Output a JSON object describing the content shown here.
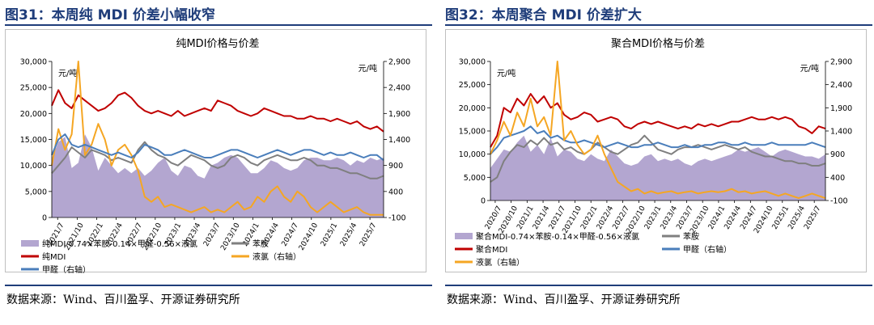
{
  "chart_data": [
    {
      "type": "area",
      "figure_label": "图31：本周纯 MDI 价差小幅收窄",
      "title": "纯MDI价格与价差",
      "source": "数据来源：Wind、百川盈孚、开源证券研究所",
      "left_unit": "元/吨",
      "right_unit": "元/吨",
      "left_axis": {
        "ticks": [
          0,
          5000,
          10000,
          15000,
          20000,
          25000,
          30000
        ],
        "tick_labels": [
          "0",
          "5,000",
          "10,000",
          "15,000",
          "20,000",
          "25,000",
          "30,000"
        ]
      },
      "right_axis": {
        "ticks": [
          -100,
          400,
          900,
          1400,
          1900,
          2400,
          2900
        ],
        "tick_labels": [
          "-100",
          "400",
          "900",
          "1,400",
          "1,900",
          "2,400",
          "2,900"
        ]
      },
      "x_tick_labels": [
        "2021/7",
        "2021/10",
        "2022/1",
        "2022/4",
        "2022/7",
        "2022/10",
        "2023/1",
        "2023/4",
        "2023/7",
        "2023/10",
        "2024/1",
        "2024/4",
        "2024/7",
        "2024/10",
        "2025/1",
        "2025/4",
        "2025/7"
      ],
      "series": [
        {
          "name": "纯MDI-0.74×苯胺-0.14×甲醛-0.56×液氯",
          "axis": "left",
          "style": "area",
          "color": "#b3a6d0",
          "values": [
            11500,
            14500,
            15500,
            9500,
            10500,
            16000,
            13500,
            9000,
            11500,
            10000,
            8500,
            9500,
            8500,
            9500,
            8000,
            9000,
            10500,
            11500,
            9000,
            8000,
            10000,
            9500,
            8000,
            7500,
            10000,
            10500,
            11500,
            12000,
            11500,
            10000,
            8500,
            8500,
            9500,
            11000,
            10500,
            9500,
            9000,
            9500,
            11000,
            11500,
            11500,
            11000,
            11000,
            11500,
            11000,
            10000,
            11000,
            10500,
            11500,
            11000,
            11500
          ]
        },
        {
          "name": "苯胺",
          "axis": "left",
          "style": "line",
          "color": "#7f7f7f",
          "values": [
            8500,
            10000,
            11500,
            13500,
            12500,
            11500,
            13000,
            12500,
            12000,
            11000,
            11500,
            11000,
            10500,
            13000,
            14500,
            13000,
            12000,
            11500,
            10500,
            10000,
            11000,
            12000,
            11500,
            11000,
            10000,
            9500,
            10000,
            11500,
            12000,
            11500,
            10500,
            10000,
            11000,
            11500,
            12000,
            11500,
            11000,
            11000,
            11500,
            11000,
            10000,
            10000,
            9500,
            9500,
            9000,
            8500,
            8500,
            8000,
            7500,
            7500,
            8000
          ]
        },
        {
          "name": "纯MDI",
          "axis": "left",
          "style": "line",
          "color": "#c00000",
          "values": [
            21500,
            24500,
            22000,
            21000,
            23500,
            22500,
            21500,
            20500,
            21000,
            22000,
            23500,
            24000,
            23000,
            21500,
            20500,
            20000,
            20500,
            20000,
            19500,
            20500,
            19500,
            20000,
            20500,
            21000,
            20500,
            22500,
            22000,
            21500,
            20500,
            20000,
            19500,
            20000,
            21000,
            20500,
            20000,
            19500,
            19500,
            19000,
            19000,
            19500,
            19000,
            19000,
            18500,
            19000,
            18500,
            18000,
            18500,
            17500,
            17000,
            17500,
            16500
          ]
        },
        {
          "name": "液氯（右轴）",
          "axis": "right",
          "style": "line",
          "color": "#f5a623",
          "values": [
            900,
            1600,
            1200,
            1500,
            2900,
            1100,
            1300,
            1700,
            1400,
            900,
            1200,
            1300,
            1100,
            800,
            300,
            200,
            300,
            100,
            150,
            100,
            50,
            0,
            50,
            100,
            0,
            50,
            0,
            100,
            200,
            50,
            100,
            300,
            200,
            400,
            500,
            300,
            200,
            400,
            300,
            100,
            0,
            100,
            200,
            100,
            0,
            50,
            100,
            0,
            -50,
            -50,
            -50
          ]
        },
        {
          "name": "甲醛（右轴）",
          "axis": "right",
          "style": "line",
          "color": "#4a7ebb",
          "values": [
            1100,
            1400,
            1500,
            1300,
            1250,
            1300,
            1250,
            1200,
            1150,
            1100,
            1150,
            1100,
            1050,
            1150,
            1300,
            1250,
            1200,
            1100,
            1100,
            1150,
            1200,
            1150,
            1100,
            1050,
            1050,
            1100,
            1150,
            1200,
            1200,
            1150,
            1100,
            1050,
            1100,
            1150,
            1200,
            1150,
            1100,
            1150,
            1200,
            1200,
            1150,
            1100,
            1150,
            1100,
            1100,
            1150,
            1100,
            1050,
            1100,
            1100,
            1000
          ]
        }
      ]
    },
    {
      "type": "area",
      "figure_label": "图32：本周聚合 MDI 价差扩大",
      "title": "聚合MDI价格与价差",
      "source": "数据来源：Wind、百川盈孚、开源证券研究所",
      "left_unit": "元/吨",
      "right_unit": "元/吨",
      "left_axis": {
        "ticks": [
          0,
          5000,
          10000,
          15000,
          20000,
          25000,
          30000
        ],
        "tick_labels": [
          "0",
          "5,000",
          "10,000",
          "15,000",
          "20,000",
          "25,000",
          "30,000"
        ]
      },
      "right_axis": {
        "ticks": [
          -100,
          400,
          900,
          1400,
          1900,
          2400,
          2900
        ],
        "tick_labels": [
          "-100",
          "400",
          "900",
          "1,400",
          "1,900",
          "2,400",
          "2,900"
        ]
      },
      "x_tick_labels": [
        "2020/7",
        "2020/10",
        "2021/1",
        "2021/4",
        "2021/7",
        "2021/10",
        "2022/1",
        "2022/4",
        "2022/7",
        "2022/10",
        "2023/1",
        "2023/4",
        "2023/7",
        "2023/10",
        "2024/1",
        "2024/4",
        "2024/7",
        "2024/10",
        "2025/1",
        "2025/4",
        "2025/7"
      ],
      "series": [
        {
          "name": "聚合MDI-0.74×苯胺-0.14×甲醛-0.56×液氯",
          "axis": "left",
          "style": "area",
          "color": "#b3a6d0",
          "values": [
            7000,
            9000,
            11000,
            10500,
            12500,
            14000,
            10500,
            12000,
            10000,
            13500,
            9500,
            11000,
            10500,
            9000,
            8500,
            10000,
            9000,
            8500,
            11000,
            9500,
            8000,
            7500,
            8000,
            9500,
            10000,
            8500,
            9000,
            8500,
            9000,
            8000,
            7500,
            8500,
            9000,
            8500,
            9000,
            9500,
            10000,
            11000,
            10500,
            11000,
            11500,
            10500,
            9500,
            10500,
            11000,
            10500,
            10000,
            9500,
            9500,
            9000,
            10000
          ]
        },
        {
          "name": "苯胺",
          "axis": "left",
          "style": "line",
          "color": "#7f7f7f",
          "values": [
            4000,
            5000,
            8500,
            10500,
            12000,
            11500,
            13000,
            12000,
            13500,
            12000,
            12500,
            11000,
            11500,
            10500,
            10000,
            11000,
            12500,
            11500,
            10500,
            10000,
            11000,
            12000,
            12500,
            14000,
            12500,
            11000,
            10500,
            10000,
            11000,
            11500,
            11500,
            12000,
            11500,
            11000,
            11500,
            12000,
            11500,
            11000,
            11500,
            10500,
            10000,
            9500,
            9500,
            9000,
            8500,
            8500,
            8000,
            8000,
            7500,
            7500,
            8000
          ]
        },
        {
          "name": "聚合MDI",
          "axis": "left",
          "style": "line",
          "color": "#c00000",
          "values": [
            11500,
            14000,
            20000,
            19000,
            22000,
            20500,
            23000,
            21000,
            22500,
            20000,
            21000,
            18500,
            17500,
            18000,
            19000,
            18500,
            17000,
            17500,
            18000,
            17500,
            16000,
            15500,
            16500,
            17000,
            16500,
            17000,
            16500,
            16000,
            15500,
            16000,
            15500,
            16500,
            16000,
            16500,
            16000,
            16500,
            17000,
            17000,
            17500,
            18000,
            17500,
            17500,
            18000,
            17500,
            18000,
            17500,
            16000,
            15500,
            14500,
            16000,
            15500
          ]
        },
        {
          "name": "甲醛（右轴）",
          "axis": "right",
          "style": "line",
          "color": "#4a7ebb",
          "values": [
            900,
            1050,
            1250,
            1300,
            1350,
            1400,
            1500,
            1350,
            1400,
            1250,
            1300,
            1200,
            1150,
            1150,
            1200,
            1150,
            1100,
            1050,
            1100,
            1150,
            1100,
            1050,
            1050,
            1100,
            1100,
            1150,
            1100,
            1050,
            1050,
            1100,
            1050,
            1050,
            1100,
            1100,
            1150,
            1150,
            1100,
            1100,
            1150,
            1100,
            1100,
            1100,
            1150,
            1100,
            1100,
            1100,
            1100,
            1100,
            1150,
            1100,
            1050
          ]
        },
        {
          "name": "液氯（右轴）",
          "axis": "right",
          "style": "line",
          "color": "#f5a623",
          "values": [
            900,
            1200,
            1600,
            1300,
            1800,
            1500,
            2100,
            1500,
            1700,
            1300,
            2900,
            1200,
            1400,
            1100,
            900,
            1000,
            1300,
            900,
            600,
            300,
            200,
            100,
            150,
            50,
            100,
            50,
            80,
            100,
            50,
            80,
            100,
            50,
            80,
            100,
            80,
            100,
            150,
            80,
            100,
            50,
            80,
            100,
            50,
            0,
            50,
            0,
            -50,
            0,
            50,
            0,
            -50
          ]
        }
      ]
    }
  ]
}
